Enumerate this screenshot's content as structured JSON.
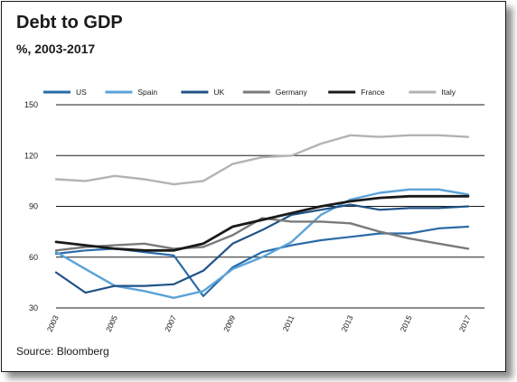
{
  "title": "Debt to GDP",
  "subtitle": "%, 2003-2017",
  "source": "Source: Bloomberg",
  "chart_data": {
    "type": "line",
    "x": [
      2003,
      2004,
      2005,
      2006,
      2007,
      2008,
      2009,
      2010,
      2011,
      2012,
      2013,
      2014,
      2015,
      2016,
      2017
    ],
    "xticks": [
      "2003",
      "2005",
      "2007",
      "2009",
      "2011",
      "2013",
      "2015",
      "2017"
    ],
    "yticks": [
      30,
      60,
      90,
      120,
      150
    ],
    "ylim": [
      30,
      150
    ],
    "xlim": [
      2003,
      2017
    ],
    "grid": "horizontal",
    "legend_position": "top",
    "series": [
      {
        "name": "US",
        "color": "#2a6aa8",
        "width": 2.2,
        "values": [
          62,
          64,
          65,
          63,
          61,
          37,
          54,
          63,
          67,
          70,
          72,
          74,
          74,
          77,
          78
        ]
      },
      {
        "name": "Spain",
        "color": "#5ba3d8",
        "width": 2.4,
        "values": [
          63,
          53,
          43,
          40,
          36,
          40,
          53,
          60,
          69,
          85,
          94,
          98,
          100,
          100,
          97
        ]
      },
      {
        "name": "UK",
        "color": "#1f5287",
        "width": 2.2,
        "values": [
          51,
          39,
          43,
          43,
          44,
          52,
          68,
          76,
          85,
          88,
          91,
          88,
          89,
          89,
          90
        ]
      },
      {
        "name": "Germany",
        "color": "#7a7a7a",
        "width": 2.4,
        "values": [
          64,
          66,
          67,
          68,
          65,
          66,
          73,
          83,
          81,
          81,
          80,
          75,
          71,
          68,
          65
        ]
      },
      {
        "name": "France",
        "color": "#1a1a1a",
        "width": 2.8,
        "values": [
          69,
          67,
          65,
          64,
          64,
          68,
          78,
          82,
          86,
          90,
          93,
          95,
          96,
          96,
          96
        ]
      },
      {
        "name": "Italy",
        "color": "#b3b3b3",
        "width": 2.4,
        "values": [
          106,
          105,
          108,
          106,
          103,
          105,
          115,
          119,
          120,
          127,
          132,
          131,
          132,
          132,
          131
        ]
      }
    ]
  }
}
